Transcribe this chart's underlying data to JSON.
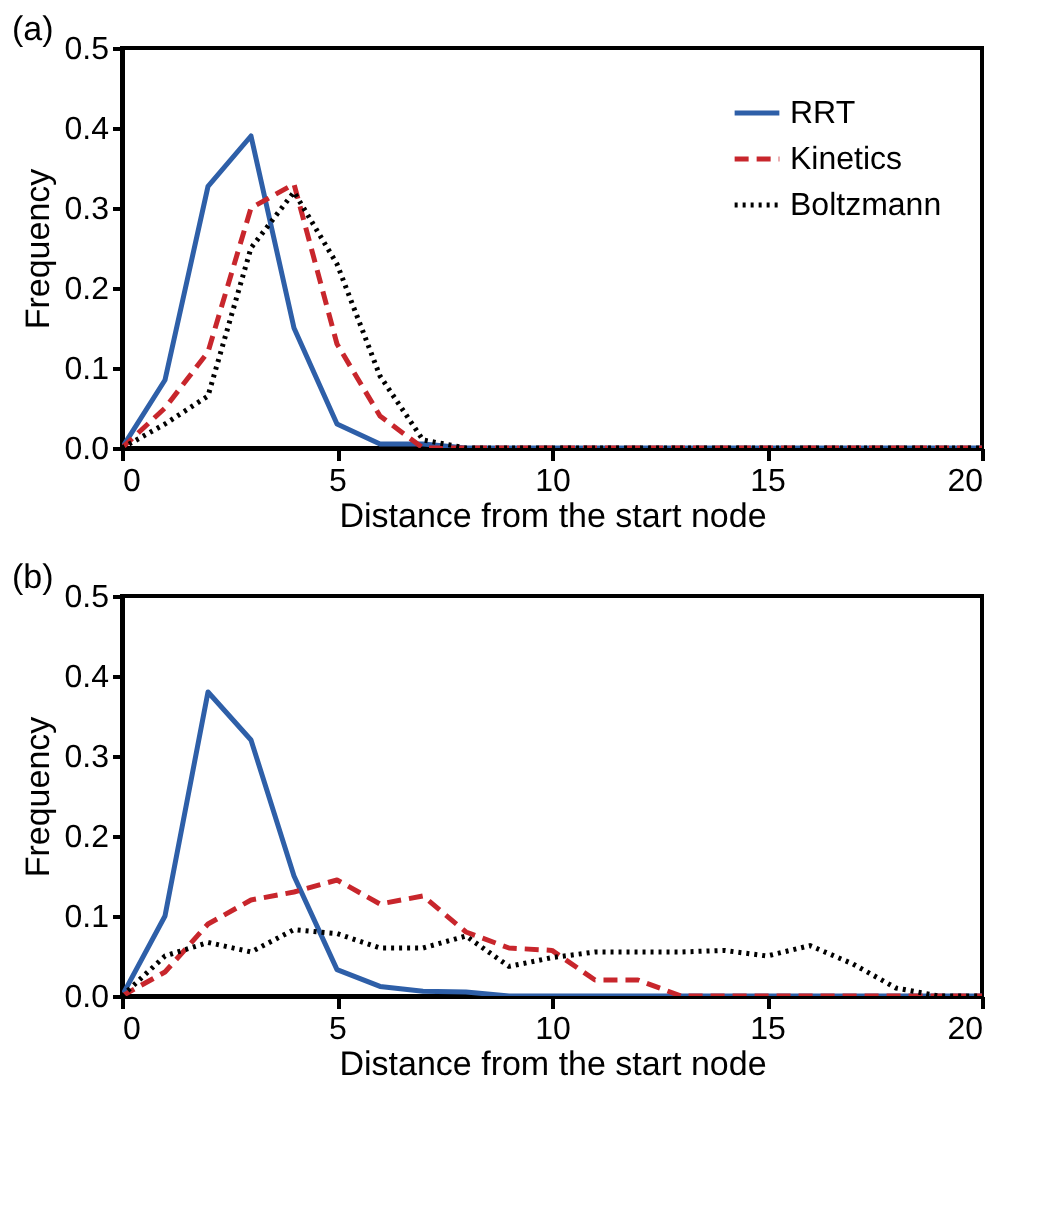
{
  "chart_data": [
    {
      "type": "line",
      "title": "(a)",
      "xlabel": "Distance from the start node",
      "ylabel": "Frequency",
      "x": [
        0,
        1,
        2,
        3,
        4,
        5,
        6,
        7,
        8,
        9,
        10,
        11,
        12,
        13,
        14,
        15,
        16,
        17,
        18,
        19,
        20
      ],
      "xlim": [
        0,
        20
      ],
      "xticks": [
        0,
        5,
        10,
        15,
        20
      ],
      "ylim": [
        0,
        0.5
      ],
      "yticks": [
        {
          "value": 0,
          "label": "0.0"
        },
        0.1,
        0.2,
        0.3,
        0.4,
        0.5
      ],
      "grid": false,
      "legend": "top right",
      "marker": "none",
      "series": [
        {
          "name": "RRT",
          "color": "#2e5fa8",
          "line_style": "solid",
          "values": [
            0,
            0.085,
            0.327,
            0.39,
            0.15,
            0.03,
            0.005,
            0.005,
            0,
            0,
            0,
            0,
            0,
            0,
            0,
            0,
            0,
            0,
            0,
            0,
            0
          ]
        },
        {
          "name": "Kinetics",
          "color": "#c8262c",
          "line_style": "dashed",
          "values": [
            0,
            0.05,
            0.12,
            0.3,
            0.33,
            0.13,
            0.04,
            0,
            0,
            0,
            0,
            0,
            0,
            0,
            0,
            0,
            0,
            0,
            0,
            0,
            0
          ]
        },
        {
          "name": "Boltzmann",
          "color": "#000000",
          "line_style": "dotted",
          "values": [
            0,
            0.03,
            0.065,
            0.25,
            0.32,
            0.23,
            0.09,
            0.01,
            0,
            0,
            0,
            0,
            0,
            0,
            0,
            0,
            0,
            0,
            0,
            0,
            0
          ]
        }
      ]
    },
    {
      "type": "line",
      "title": "(b)",
      "xlabel": "Distance from the start node",
      "ylabel": "Frequency",
      "x": [
        0,
        1,
        2,
        3,
        4,
        5,
        6,
        7,
        8,
        9,
        10,
        11,
        12,
        13,
        14,
        15,
        16,
        17,
        18,
        19,
        20
      ],
      "xlim": [
        0,
        20
      ],
      "xticks": [
        0,
        5,
        10,
        15,
        20
      ],
      "ylim": [
        0,
        0.5
      ],
      "yticks": [
        {
          "value": 0,
          "label": "0.0"
        },
        0.1,
        0.2,
        0.3,
        0.4,
        0.5
      ],
      "grid": false,
      "legend": "top right",
      "marker": "none",
      "series": [
        {
          "name": "RRT",
          "color": "#2e5fa8",
          "line_style": "solid",
          "values": [
            0,
            0.1,
            0.38,
            0.32,
            0.15,
            0.033,
            0.012,
            0.006,
            0.005,
            0,
            0,
            0,
            0,
            0,
            0,
            0,
            0,
            0,
            0,
            0,
            0
          ]
        },
        {
          "name": "Kinetics",
          "color": "#c8262c",
          "line_style": "dashed",
          "values": [
            0,
            0.03,
            0.09,
            0.12,
            0.13,
            0.145,
            0.115,
            0.125,
            0.08,
            0.06,
            0.057,
            0.02,
            0.02,
            0,
            0,
            0,
            0,
            0,
            0,
            0,
            0
          ]
        },
        {
          "name": "Boltzmann",
          "color": "#000000",
          "line_style": "dotted",
          "values": [
            0,
            0.05,
            0.067,
            0.055,
            0.083,
            0.078,
            0.06,
            0.06,
            0.075,
            0.037,
            0.048,
            0.055,
            0.055,
            0.055,
            0.057,
            0.05,
            0.063,
            0.04,
            0.01,
            0,
            0
          ]
        }
      ]
    }
  ]
}
